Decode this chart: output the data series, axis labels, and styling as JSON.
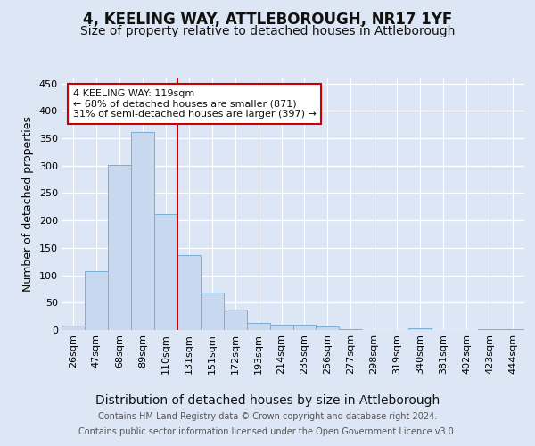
{
  "title": "4, KEELING WAY, ATTLEBOROUGH, NR17 1YF",
  "subtitle": "Size of property relative to detached houses in Attleborough",
  "xlabel": "Distribution of detached houses by size in Attleborough",
  "ylabel": "Number of detached properties",
  "footer_line1": "Contains HM Land Registry data © Crown copyright and database right 2024.",
  "footer_line2": "Contains public sector information licensed under the Open Government Licence v3.0.",
  "bin_labels": [
    "26sqm",
    "47sqm",
    "68sqm",
    "89sqm",
    "110sqm",
    "131sqm",
    "151sqm",
    "172sqm",
    "193sqm",
    "214sqm",
    "235sqm",
    "256sqm",
    "277sqm",
    "298sqm",
    "319sqm",
    "340sqm",
    "381sqm",
    "402sqm",
    "423sqm",
    "444sqm"
  ],
  "bar_values": [
    8,
    108,
    301,
    362,
    212,
    136,
    68,
    38,
    13,
    10,
    9,
    6,
    2,
    0,
    0,
    3,
    0,
    0,
    2,
    2
  ],
  "bar_color": "#c8d9ef",
  "bar_edge_color": "#7aafd4",
  "vline_x_pos": 4.5,
  "vline_color": "#cc0000",
  "annotation_line1": "4 KEELING WAY: 119sqm",
  "annotation_line2": "← 68% of detached houses are smaller (871)",
  "annotation_line3": "31% of semi-detached houses are larger (397) →",
  "annotation_box_facecolor": "#ffffff",
  "annotation_box_edgecolor": "#cc0000",
  "ylim": [
    0,
    460
  ],
  "yticks": [
    0,
    50,
    100,
    150,
    200,
    250,
    300,
    350,
    400,
    450
  ],
  "background_color": "#dce6f5",
  "grid_color": "#ffffff",
  "title_fontsize": 12,
  "subtitle_fontsize": 10,
  "xlabel_fontsize": 10,
  "ylabel_fontsize": 9,
  "tick_fontsize": 8,
  "annotation_fontsize": 8,
  "footer_fontsize": 7
}
